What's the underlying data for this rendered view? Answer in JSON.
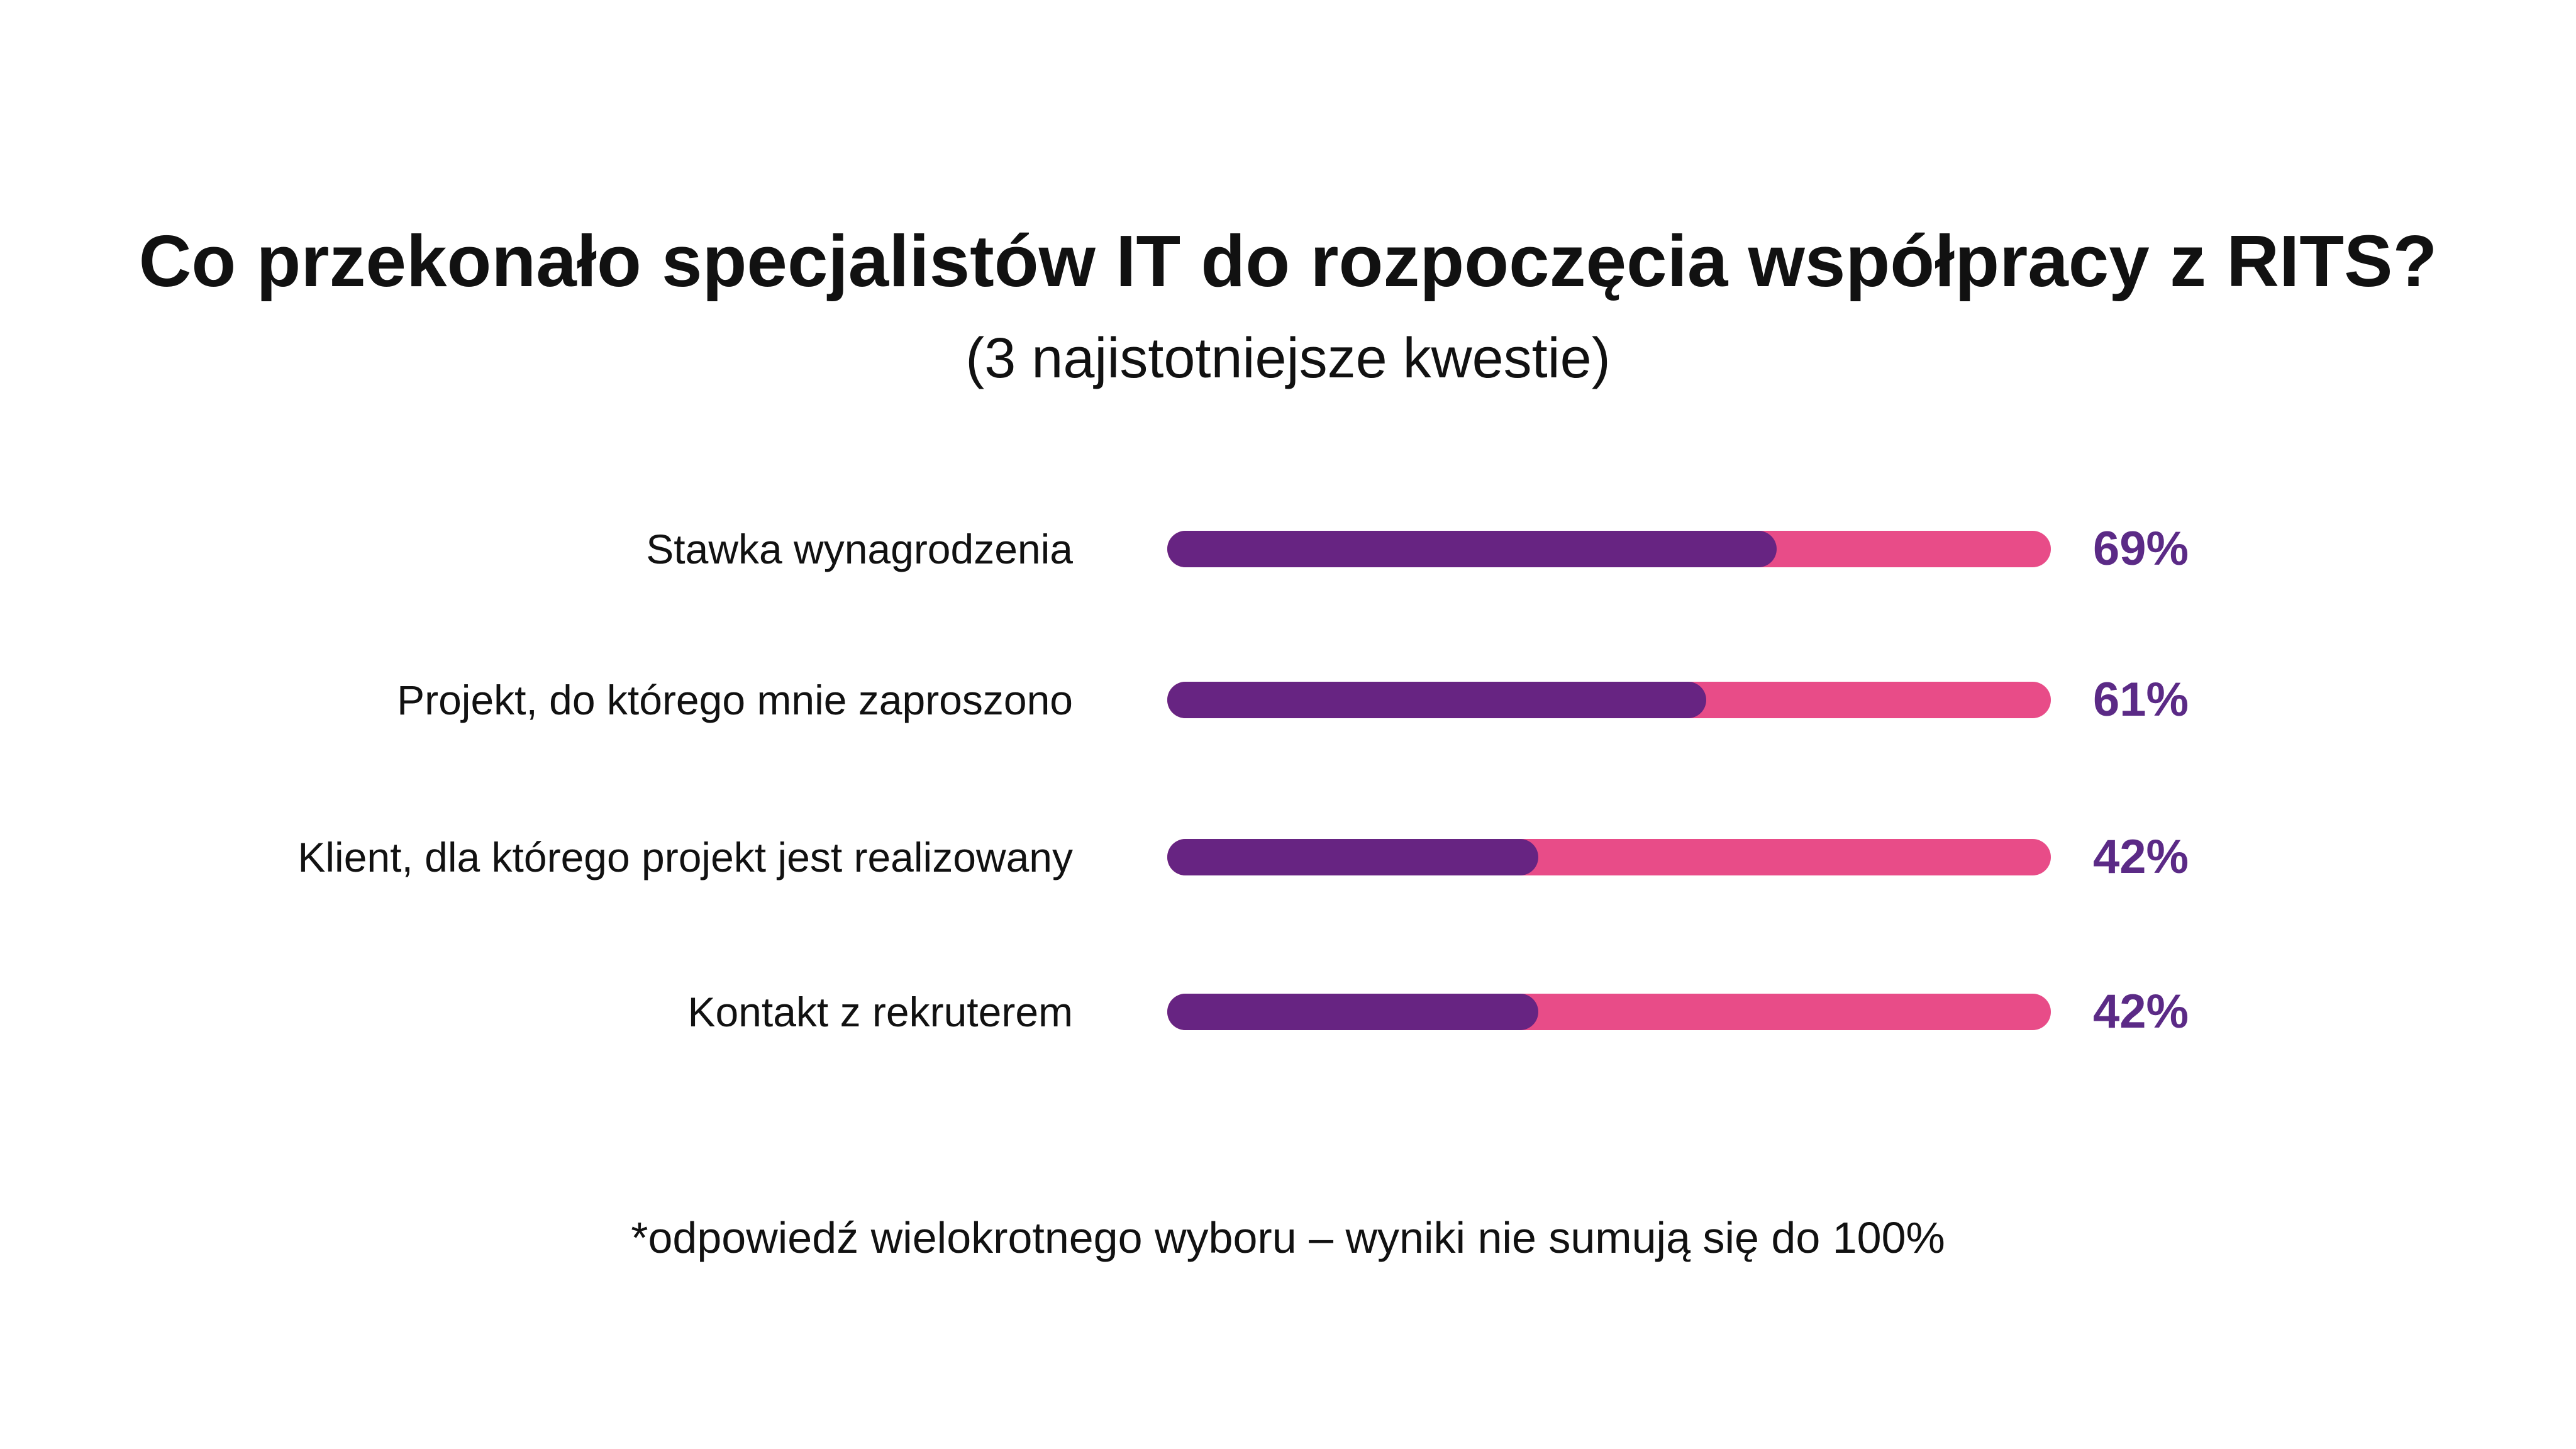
{
  "colors": {
    "accent_purple": "#672482",
    "accent_pink": "#e84c88",
    "value_text": "#5b2a86",
    "text": "#111111",
    "background": "#ffffff"
  },
  "chart_data": {
    "type": "bar",
    "title": "Co przekonało specjalistów IT do rozpoczęcia współpracy z RITS?",
    "subtitle": "(3 najistotniejsze kwestie)",
    "orientation": "horizontal",
    "categories": [
      "Stawka wynagrodzenia",
      "Projekt, do którego mnie zaproszono",
      "Klient, dla którego projekt jest realizowany",
      "Kontakt z rekruterem"
    ],
    "values": [
      69,
      61,
      42,
      42
    ],
    "value_labels": [
      "69%",
      "61%",
      "42%",
      "42%"
    ],
    "xlim": [
      0,
      100
    ],
    "grid": false,
    "footnote": "*odpowiedź wielokrotnego wyboru – wyniki nie sumują się do 100%"
  }
}
